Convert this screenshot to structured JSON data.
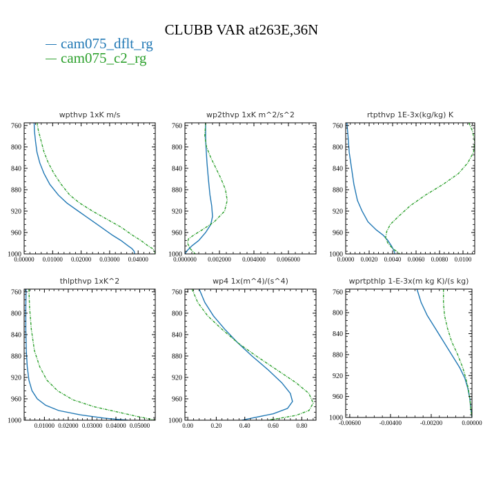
{
  "title": "CLUBB VAR at263E,36N",
  "legend": [
    {
      "name": "cam075_dflt_rg",
      "color": "#1f77b4"
    },
    {
      "name": "cam075_c2_rg",
      "color": "#2ca02c"
    }
  ],
  "chart_data": [
    {
      "type": "line",
      "title": "wpthvp   1xK m/s",
      "ylim": [
        1000,
        755
      ],
      "yticks": [
        760,
        800,
        840,
        880,
        920,
        960,
        1000
      ],
      "xlim": [
        0,
        0.046
      ],
      "xticks": [
        0,
        0.01,
        0.02,
        0.03,
        0.04
      ],
      "xticklabels": [
        "0.00000",
        "0.01000",
        "0.02000",
        "0.03000",
        "0.04000"
      ],
      "series": [
        {
          "name": "cam075_dflt_rg",
          "color": "#1f77b4",
          "dashed": false,
          "x": [
            0.0035,
            0.0036,
            0.004,
            0.0045,
            0.0055,
            0.007,
            0.009,
            0.012,
            0.015,
            0.019,
            0.023,
            0.027,
            0.031,
            0.034,
            0.0365,
            0.0378,
            0.0386,
            0.0388
          ],
          "y": [
            755,
            770,
            790,
            810,
            830,
            850,
            870,
            890,
            905,
            920,
            935,
            950,
            965,
            975,
            985,
            990,
            995,
            1000
          ]
        },
        {
          "name": "cam075_c2_rg",
          "color": "#2ca02c",
          "dashed": true,
          "x": [
            0.0045,
            0.005,
            0.006,
            0.007,
            0.0085,
            0.0105,
            0.013,
            0.016,
            0.0195,
            0.024,
            0.029,
            0.034,
            0.038,
            0.041,
            0.0435,
            0.045,
            0.0458,
            0.046
          ],
          "y": [
            755,
            770,
            790,
            810,
            830,
            850,
            870,
            890,
            905,
            920,
            935,
            950,
            965,
            975,
            985,
            990,
            995,
            1000
          ]
        }
      ]
    },
    {
      "type": "line",
      "title": "wp2thvp   1xK m^2/s^2",
      "ylim": [
        1000,
        755
      ],
      "yticks": [
        760,
        800,
        840,
        880,
        920,
        960,
        1000
      ],
      "xlim": [
        0,
        0.0076
      ],
      "xticks": [
        0,
        0.002,
        0.004,
        0.006
      ],
      "xticklabels": [
        "0.000000",
        "0.002000",
        "0.004000",
        "0.006000"
      ],
      "series": [
        {
          "name": "cam075_dflt_rg",
          "color": "#1f77b4",
          "dashed": false,
          "x": [
            0.0012,
            0.0012,
            0.00122,
            0.00128,
            0.00136,
            0.00145,
            0.00155,
            0.0016,
            0.0015,
            0.0012,
            0.0008,
            0.0004,
            0.00015,
            0
          ],
          "y": [
            755,
            780,
            800,
            830,
            860,
            890,
            910,
            930,
            945,
            960,
            975,
            985,
            993,
            1000
          ]
        },
        {
          "name": "cam075_c2_rg",
          "color": "#2ca02c",
          "dashed": true,
          "x": [
            0.0012,
            0.00115,
            0.00125,
            0.0015,
            0.0018,
            0.0021,
            0.00235,
            0.00245,
            0.0023,
            0.0017,
            0.001,
            0.0005,
            0.0002,
            0.00015,
            0.0003,
            0.0006
          ],
          "y": [
            755,
            780,
            800,
            820,
            840,
            860,
            880,
            900,
            920,
            940,
            955,
            965,
            972,
            980,
            990,
            1000
          ]
        }
      ]
    },
    {
      "type": "line",
      "title": "rtpthvp   1E-3x(kg/kg) K",
      "ylim": [
        1000,
        755
      ],
      "yticks": [
        760,
        800,
        840,
        880,
        920,
        960,
        1000
      ],
      "xlim": [
        0,
        0.011
      ],
      "xticks": [
        0,
        0.002,
        0.004,
        0.006,
        0.008,
        0.01
      ],
      "xticklabels": [
        "0.0000",
        "0.0020",
        "0.0040",
        "0.0060",
        "0.0080",
        "0.0100"
      ],
      "series": [
        {
          "name": "cam075_dflt_rg",
          "color": "#1f77b4",
          "dashed": false,
          "x": [
            0.0001,
            0.0002,
            0.0003,
            0.0005,
            0.0007,
            0.001,
            0.0014,
            0.0019,
            0.0026,
            0.0032,
            0.0036,
            0.0039,
            0.0041,
            0.0042
          ],
          "y": [
            755,
            780,
            810,
            840,
            870,
            900,
            920,
            940,
            955,
            965,
            975,
            985,
            993,
            1000
          ]
        },
        {
          "name": "cam075_c2_rg",
          "color": "#2ca02c",
          "dashed": true,
          "x": [
            0.0105,
            0.0108,
            0.011,
            0.0109,
            0.0104,
            0.0096,
            0.0083,
            0.0068,
            0.0055,
            0.0045,
            0.0038,
            0.0035,
            0.0034,
            0.0036,
            0.004,
            0.0044,
            0.0046
          ],
          "y": [
            755,
            770,
            790,
            810,
            830,
            850,
            870,
            890,
            910,
            930,
            945,
            958,
            970,
            980,
            990,
            996,
            1000
          ]
        }
      ]
    },
    {
      "type": "line",
      "title": "thlpthvp   1xK^2",
      "ylim": [
        1000,
        755
      ],
      "yticks": [
        760,
        800,
        840,
        880,
        920,
        960,
        1000
      ],
      "xlim": [
        0.0015,
        0.0565
      ],
      "xticks": [
        0.01,
        0.02,
        0.03,
        0.04,
        0.05
      ],
      "xticklabels": [
        "0.01000",
        "0.02000",
        "0.03000",
        "0.04000",
        "0.05000"
      ],
      "series": [
        {
          "name": "cam075_dflt_rg",
          "color": "#1f77b4",
          "dashed": false,
          "x": [
            0.0023,
            0.0022,
            0.0022,
            0.0024,
            0.0028,
            0.0035,
            0.0048,
            0.007,
            0.0105,
            0.016,
            0.025,
            0.035,
            0.042,
            0.045
          ],
          "y": [
            755,
            790,
            830,
            870,
            900,
            925,
            945,
            960,
            972,
            982,
            990,
            996,
            999,
            1000
          ]
        },
        {
          "name": "cam075_c2_rg",
          "color": "#2ca02c",
          "dashed": true,
          "x": [
            0.0035,
            0.0038,
            0.0045,
            0.0058,
            0.008,
            0.011,
            0.0155,
            0.022,
            0.031,
            0.041,
            0.049,
            0.0545,
            0.0565
          ],
          "y": [
            755,
            790,
            830,
            870,
            900,
            925,
            945,
            962,
            975,
            985,
            993,
            998,
            1000
          ]
        }
      ]
    },
    {
      "type": "line",
      "title": "wp4   1x(m^4)/(s^4)",
      "ylim": [
        1000,
        755
      ],
      "yticks": [
        760,
        800,
        840,
        880,
        920,
        960,
        1000
      ],
      "xlim": [
        -0.02,
        0.9
      ],
      "xticks": [
        0,
        0.2,
        0.4,
        0.6,
        0.8
      ],
      "xticklabels": [
        "0.00",
        "0.20",
        "0.40",
        "0.60",
        "0.80"
      ],
      "series": [
        {
          "name": "cam075_dflt_rg",
          "color": "#1f77b4",
          "dashed": false,
          "x": [
            0.08,
            0.12,
            0.18,
            0.26,
            0.35,
            0.45,
            0.56,
            0.66,
            0.72,
            0.735,
            0.7,
            0.6,
            0.45,
            0.38
          ],
          "y": [
            755,
            780,
            805,
            830,
            855,
            880,
            905,
            930,
            950,
            965,
            978,
            988,
            996,
            1000
          ]
        },
        {
          "name": "cam075_c2_rg",
          "color": "#2ca02c",
          "dashed": true,
          "x": [
            0.03,
            0.07,
            0.14,
            0.24,
            0.35,
            0.48,
            0.62,
            0.76,
            0.85,
            0.88,
            0.85,
            0.76,
            0.63,
            0.56
          ],
          "y": [
            755,
            780,
            805,
            830,
            855,
            880,
            905,
            930,
            950,
            968,
            982,
            991,
            997,
            1000
          ]
        }
      ]
    },
    {
      "type": "line",
      "title": "wprtpthlp   1-E-3x(m kg K)/(s kg)",
      "ylim": [
        1000,
        755
      ],
      "yticks": [
        760,
        800,
        840,
        880,
        920,
        960,
        1000
      ],
      "xlim": [
        -0.0062,
        0
      ],
      "xticks": [
        -0.006,
        -0.004,
        -0.002,
        0
      ],
      "xticklabels": [
        "-0.00600",
        "-0.00400",
        "-0.00200",
        "0.00000"
      ],
      "series": [
        {
          "name": "cam075_dflt_rg",
          "color": "#1f77b4",
          "dashed": false,
          "x": [
            -0.0027,
            -0.0025,
            -0.0022,
            -0.0018,
            -0.0014,
            -0.001,
            -0.0006,
            -0.00035,
            -0.0002,
            -0.0001,
            -5e-05,
            0
          ],
          "y": [
            755,
            780,
            805,
            830,
            855,
            880,
            905,
            925,
            945,
            965,
            985,
            1000
          ]
        },
        {
          "name": "cam075_c2_rg",
          "color": "#2ca02c",
          "dashed": true,
          "x": [
            -0.0014,
            -0.0014,
            -0.00135,
            -0.0012,
            -0.001,
            -0.0007,
            -0.00045,
            -0.0003,
            -0.00018,
            -0.0001,
            -5e-05,
            0
          ],
          "y": [
            755,
            780,
            805,
            830,
            855,
            880,
            905,
            925,
            945,
            965,
            985,
            1000
          ]
        }
      ]
    }
  ]
}
